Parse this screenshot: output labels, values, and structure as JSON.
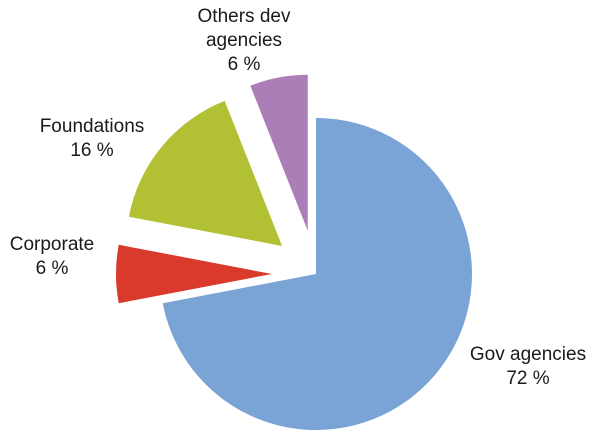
{
  "chart_data": {
    "type": "pie",
    "exploded": true,
    "start_angle_deg": 0,
    "direction": "clockwise",
    "legend": "none",
    "slices": [
      {
        "name": "Gov agencies",
        "value": 72,
        "pct_label": "72 %",
        "color": "#7aa3d6",
        "label_lines": [
          "Gov agencies"
        ]
      },
      {
        "name": "Corporate",
        "value": 6,
        "pct_label": "6 %",
        "color": "#d93a2b",
        "label_lines": [
          "Corporate"
        ]
      },
      {
        "name": "Foundations",
        "value": 16,
        "pct_label": "16 %",
        "color": "#b2c033",
        "label_lines": [
          "Foundations"
        ]
      },
      {
        "name": "Others dev agencies",
        "value": 6,
        "pct_label": "6 %",
        "color": "#ac7eb8",
        "label_lines": [
          "Others dev",
          "agencies"
        ]
      }
    ]
  }
}
